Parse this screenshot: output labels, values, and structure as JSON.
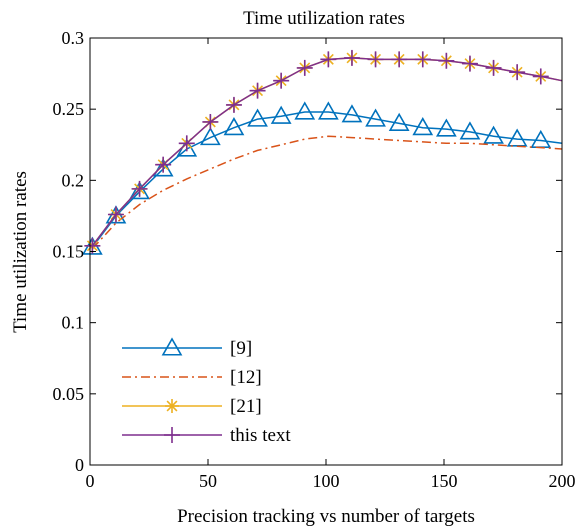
{
  "chart_data": {
    "type": "line",
    "title": "Time utilization rates",
    "xlabel": "Precision tracking vs number of targets",
    "ylabel": "Time utilization rates",
    "xlim": [
      0,
      200
    ],
    "ylim": [
      0,
      0.3
    ],
    "xticks": [
      "0",
      "50",
      "100",
      "150",
      "200"
    ],
    "yticks": [
      "0",
      "0.05",
      "0.1",
      "0.15",
      "0.2",
      "0.25",
      "0.3"
    ],
    "grid": false,
    "legend_position": "bottom-left",
    "x": [
      1,
      11,
      21,
      31,
      41,
      51,
      61,
      71,
      81,
      91,
      101,
      111,
      121,
      131,
      141,
      151,
      161,
      171,
      181,
      191,
      200
    ],
    "series": [
      {
        "name": "[9]",
        "color": "#0072BD",
        "style": "solid",
        "marker": "triangle",
        "values": [
          0.153,
          0.175,
          0.192,
          0.208,
          0.222,
          0.23,
          0.237,
          0.243,
          0.245,
          0.248,
          0.248,
          0.246,
          0.243,
          0.24,
          0.237,
          0.236,
          0.234,
          0.231,
          0.229,
          0.228,
          0.226
        ]
      },
      {
        "name": "[12]",
        "color": "#D95319",
        "style": "dashdot",
        "marker": "none",
        "values": [
          0.152,
          0.17,
          0.183,
          0.193,
          0.201,
          0.208,
          0.215,
          0.221,
          0.225,
          0.229,
          0.231,
          0.23,
          0.229,
          0.228,
          0.227,
          0.226,
          0.226,
          0.225,
          0.224,
          0.223,
          0.222
        ]
      },
      {
        "name": "[21]",
        "color": "#EDB120",
        "style": "solid",
        "marker": "asterisk",
        "values": [
          0.154,
          0.176,
          0.194,
          0.211,
          0.226,
          0.241,
          0.253,
          0.263,
          0.27,
          0.279,
          0.285,
          0.286,
          0.285,
          0.285,
          0.285,
          0.284,
          0.282,
          0.279,
          0.276,
          0.273,
          0.27
        ]
      },
      {
        "name": "this text",
        "color": "#7E2F8E",
        "style": "solid",
        "marker": "plus",
        "values": [
          0.154,
          0.176,
          0.194,
          0.211,
          0.226,
          0.241,
          0.253,
          0.263,
          0.27,
          0.279,
          0.285,
          0.286,
          0.285,
          0.285,
          0.285,
          0.284,
          0.282,
          0.279,
          0.276,
          0.273,
          0.27
        ]
      }
    ]
  }
}
